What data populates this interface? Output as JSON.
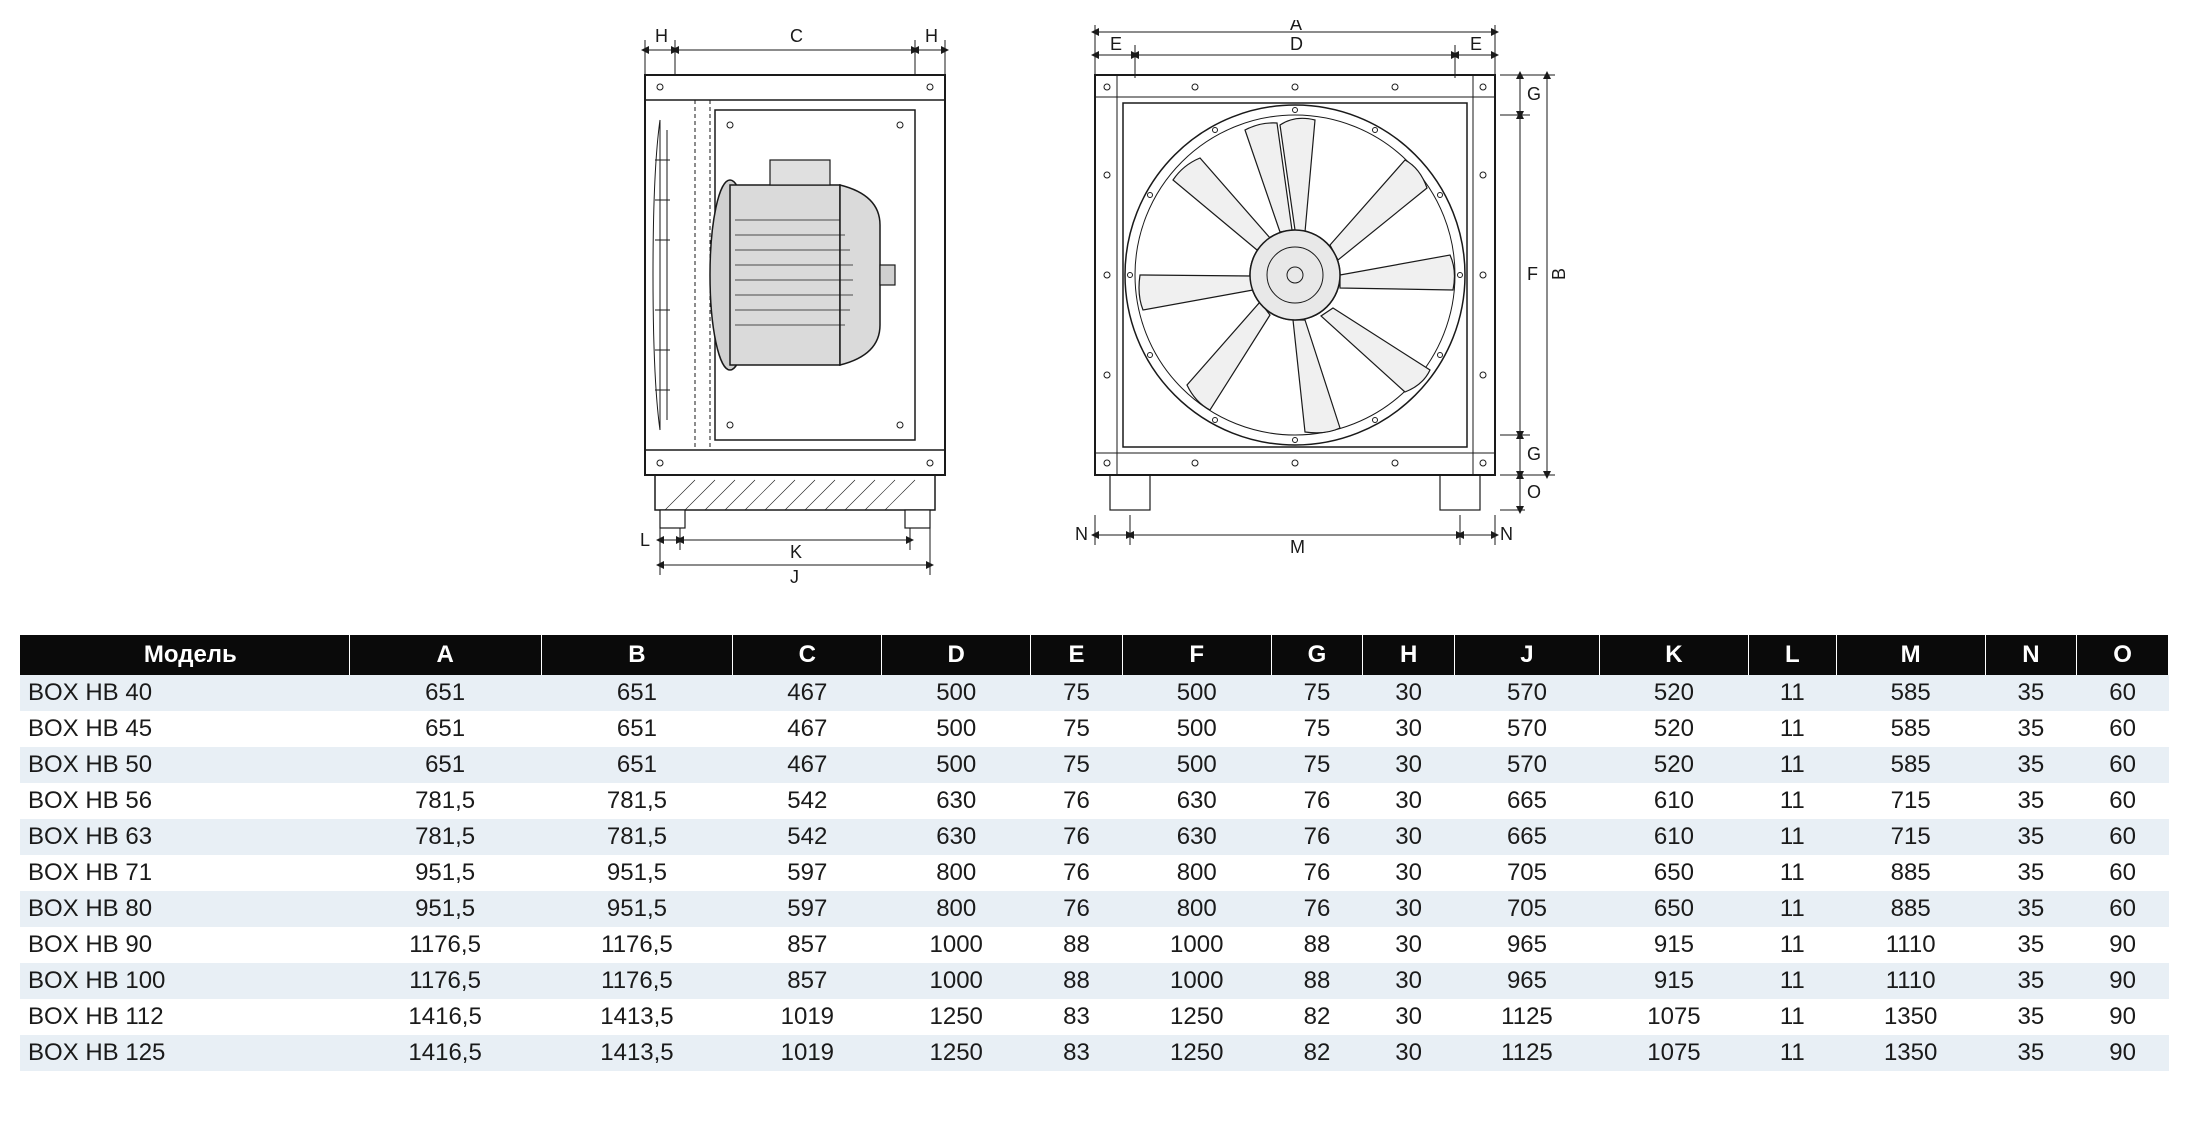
{
  "dimensions": {
    "left_view": {
      "labels": [
        "H",
        "C",
        "H",
        "L",
        "K",
        "J",
        "B"
      ]
    },
    "right_view": {
      "labels": [
        "A",
        "E",
        "D",
        "E",
        "G",
        "F",
        "G",
        "O",
        "N",
        "M",
        "N"
      ]
    }
  },
  "table": {
    "header_bg": "#0a0a0a",
    "header_fg": "#ffffff",
    "row_odd_bg": "#e8eff5",
    "row_even_bg": "#ffffff",
    "text_color": "#1a1a1a",
    "columns": [
      "Модель",
      "A",
      "B",
      "C",
      "D",
      "E",
      "F",
      "G",
      "H",
      "J",
      "K",
      "L",
      "M",
      "N",
      "O"
    ],
    "rows": [
      [
        "BOX HB 40",
        "651",
        "651",
        "467",
        "500",
        "75",
        "500",
        "75",
        "30",
        "570",
        "520",
        "11",
        "585",
        "35",
        "60"
      ],
      [
        "BOX HB 45",
        "651",
        "651",
        "467",
        "500",
        "75",
        "500",
        "75",
        "30",
        "570",
        "520",
        "11",
        "585",
        "35",
        "60"
      ],
      [
        "BOX HB 50",
        "651",
        "651",
        "467",
        "500",
        "75",
        "500",
        "75",
        "30",
        "570",
        "520",
        "11",
        "585",
        "35",
        "60"
      ],
      [
        "BOX HB 56",
        "781,5",
        "781,5",
        "542",
        "630",
        "76",
        "630",
        "76",
        "30",
        "665",
        "610",
        "11",
        "715",
        "35",
        "60"
      ],
      [
        "BOX HB 63",
        "781,5",
        "781,5",
        "542",
        "630",
        "76",
        "630",
        "76",
        "30",
        "665",
        "610",
        "11",
        "715",
        "35",
        "60"
      ],
      [
        "BOX HB 71",
        "951,5",
        "951,5",
        "597",
        "800",
        "76",
        "800",
        "76",
        "30",
        "705",
        "650",
        "11",
        "885",
        "35",
        "60"
      ],
      [
        "BOX HB 80",
        "951,5",
        "951,5",
        "597",
        "800",
        "76",
        "800",
        "76",
        "30",
        "705",
        "650",
        "11",
        "885",
        "35",
        "60"
      ],
      [
        "BOX HB 90",
        "1176,5",
        "1176,5",
        "857",
        "1000",
        "88",
        "1000",
        "88",
        "30",
        "965",
        "915",
        "11",
        "1110",
        "35",
        "90"
      ],
      [
        "BOX HB 100",
        "1176,5",
        "1176,5",
        "857",
        "1000",
        "88",
        "1000",
        "88",
        "30",
        "965",
        "915",
        "11",
        "1110",
        "35",
        "90"
      ],
      [
        "BOX HB 112",
        "1416,5",
        "1413,5",
        "1019",
        "1250",
        "83",
        "1250",
        "82",
        "30",
        "1125",
        "1075",
        "11",
        "1350",
        "35",
        "90"
      ],
      [
        "BOX HB 125",
        "1416,5",
        "1413,5",
        "1019",
        "1250",
        "83",
        "1250",
        "82",
        "30",
        "1125",
        "1075",
        "11",
        "1350",
        "35",
        "90"
      ]
    ]
  }
}
